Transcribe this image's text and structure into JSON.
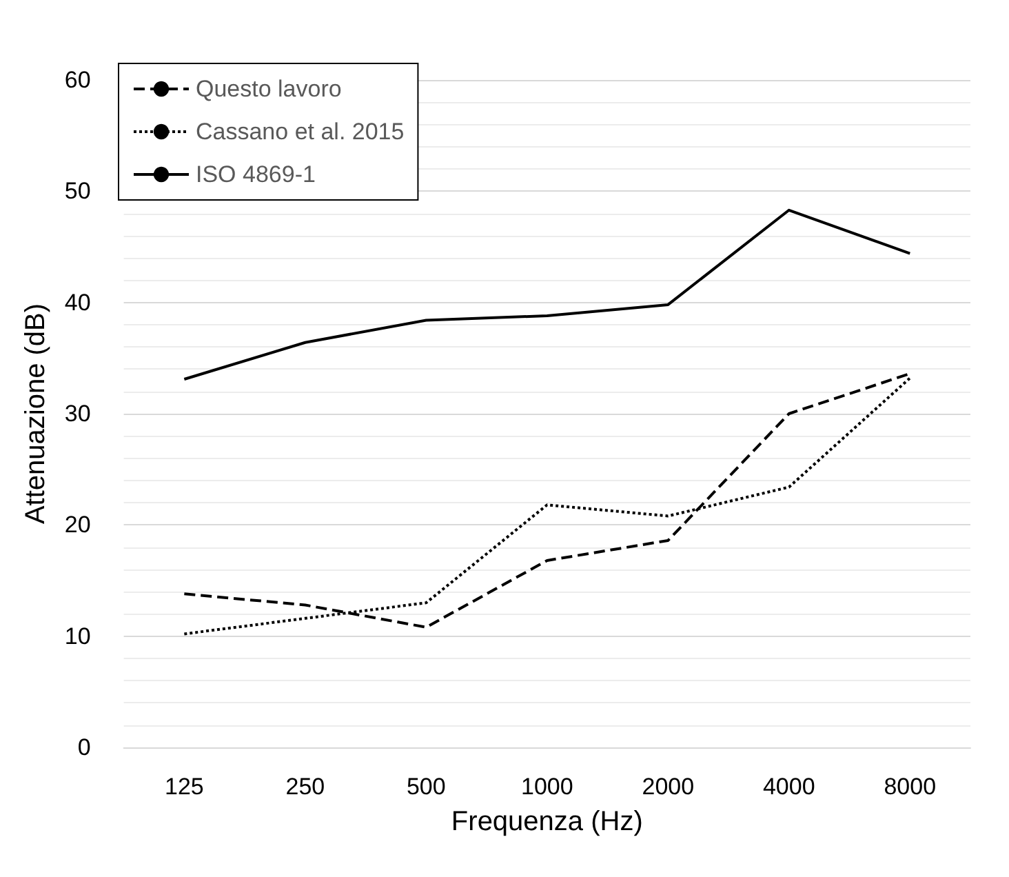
{
  "chart_data": {
    "type": "line",
    "xlabel": "Frequenza (Hz)",
    "ylabel": "Attenuazione (dB)",
    "categories": [
      "125",
      "250",
      "500",
      "1000",
      "2000",
      "4000",
      "8000"
    ],
    "series": [
      {
        "name": "Questo lavoro",
        "color": "#000000",
        "line_style": "dashed",
        "values": [
          13.8,
          12.8,
          10.8,
          16.8,
          18.6,
          30,
          33.6
        ]
      },
      {
        "name": "Cassano et al. 2015",
        "color": "#000000",
        "line_style": "dotted",
        "values": [
          10.2,
          11.6,
          13,
          21.8,
          20.8,
          23.4,
          33.2
        ]
      },
      {
        "name": "ISO 4869-1",
        "color": "#000000",
        "line_style": "solid",
        "values": [
          33.1,
          36.4,
          38.4,
          38.8,
          39.8,
          48.3,
          44.4
        ]
      }
    ],
    "ylim": [
      0,
      60
    ],
    "yticks": [
      0,
      10,
      20,
      30,
      40,
      50,
      60
    ],
    "grid": "y",
    "legend": "top left",
    "marker": "none"
  }
}
